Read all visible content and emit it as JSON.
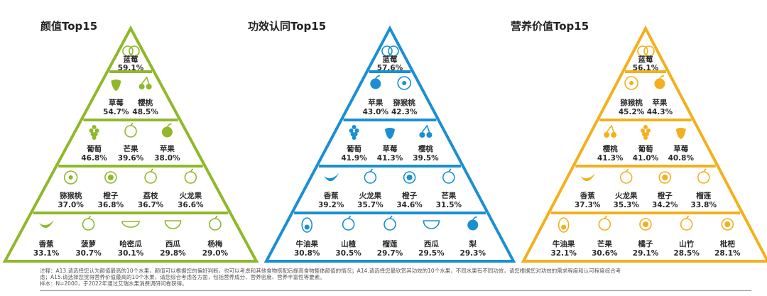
{
  "chart_data": [
    {
      "type": "pyramid",
      "title": "颜值Top15",
      "color": "#8fb82a",
      "rows": [
        [
          {
            "name": "蓝莓",
            "value": "59.1%",
            "icon": "blueberry-icon"
          }
        ],
        [
          {
            "name": "草莓",
            "value": "54.7%",
            "icon": "strawberry-icon"
          },
          {
            "name": "樱桃",
            "value": "48.5%",
            "icon": "cherry-icon"
          }
        ],
        [
          {
            "name": "葡萄",
            "value": "46.8%",
            "icon": "grape-icon"
          },
          {
            "name": "芒果",
            "value": "39.6%",
            "icon": "mango-icon"
          },
          {
            "name": "苹果",
            "value": "38.0%",
            "icon": "apple-icon"
          }
        ],
        [
          {
            "name": "猕猴桃",
            "value": "37.0%",
            "icon": "kiwi-icon"
          },
          {
            "name": "橙子",
            "value": "36.8%",
            "icon": "orange-icon"
          },
          {
            "name": "荔枝",
            "value": "36.7%",
            "icon": "lychee-icon"
          },
          {
            "name": "火龙果",
            "value": "36.6%",
            "icon": "dragonfruit-icon"
          }
        ],
        [
          {
            "name": "香蕉",
            "value": "33.1%",
            "icon": "banana-icon"
          },
          {
            "name": "菠萝",
            "value": "30.7%",
            "icon": "pineapple-icon"
          },
          {
            "name": "哈密瓜",
            "value": "30.1%",
            "icon": "cantaloupe-icon"
          },
          {
            "name": "西瓜",
            "value": "29.8%",
            "icon": "watermelon-icon"
          },
          {
            "name": "杨梅",
            "value": "29.0%",
            "icon": "bayberry-icon"
          }
        ]
      ]
    },
    {
      "type": "pyramid",
      "title": "功效认同Top15",
      "color": "#1a8fd1",
      "rows": [
        [
          {
            "name": "蓝莓",
            "value": "57.6%",
            "icon": "blueberry-icon"
          }
        ],
        [
          {
            "name": "苹果",
            "value": "43.0%",
            "icon": "apple-icon"
          },
          {
            "name": "猕猴桃",
            "value": "42.3%",
            "icon": "kiwi-icon"
          }
        ],
        [
          {
            "name": "葡萄",
            "value": "41.9%",
            "icon": "grape-icon"
          },
          {
            "name": "草莓",
            "value": "41.3%",
            "icon": "strawberry-icon"
          },
          {
            "name": "樱桃",
            "value": "39.5%",
            "icon": "cherry-icon"
          }
        ],
        [
          {
            "name": "香蕉",
            "value": "39.2%",
            "icon": "banana-icon"
          },
          {
            "name": "火龙果",
            "value": "35.7%",
            "icon": "dragonfruit-icon"
          },
          {
            "name": "橙子",
            "value": "34.6%",
            "icon": "orange-icon"
          },
          {
            "name": "芒果",
            "value": "31.5%",
            "icon": "mango-icon"
          }
        ],
        [
          {
            "name": "牛油果",
            "value": "30.8%",
            "icon": "avocado-icon"
          },
          {
            "name": "山楂",
            "value": "30.5%",
            "icon": "hawthorn-icon"
          },
          {
            "name": "榴莲",
            "value": "29.7%",
            "icon": "durian-icon"
          },
          {
            "name": "西瓜",
            "value": "29.5%",
            "icon": "watermelon-icon"
          },
          {
            "name": "梨",
            "value": "29.3%",
            "icon": "pear-icon"
          }
        ]
      ]
    },
    {
      "type": "pyramid",
      "title": "营养价值Top15",
      "color": "#f2b01e",
      "rows": [
        [
          {
            "name": "蓝莓",
            "value": "56.1%",
            "icon": "blueberry-icon"
          }
        ],
        [
          {
            "name": "猕猴桃",
            "value": "45.2%",
            "icon": "kiwi-icon"
          },
          {
            "name": "苹果",
            "value": "44.3%",
            "icon": "apple-icon"
          }
        ],
        [
          {
            "name": "樱桃",
            "value": "41.3%",
            "icon": "cherry-icon"
          },
          {
            "name": "葡萄",
            "value": "41.0%",
            "icon": "grape-icon"
          },
          {
            "name": "草莓",
            "value": "40.8%",
            "icon": "strawberry-icon"
          }
        ],
        [
          {
            "name": "香蕉",
            "value": "37.3%",
            "icon": "banana-icon"
          },
          {
            "name": "火龙果",
            "value": "35.3%",
            "icon": "dragonfruit-icon"
          },
          {
            "name": "橙子",
            "value": "34.2%",
            "icon": "orange-icon"
          },
          {
            "name": "榴莲",
            "value": "33.8%",
            "icon": "durian-icon"
          }
        ],
        [
          {
            "name": "牛油果",
            "value": "32.1%",
            "icon": "avocado-icon"
          },
          {
            "name": "芒果",
            "value": "30.6%",
            "icon": "mango-icon"
          },
          {
            "name": "橘子",
            "value": "29.1%",
            "icon": "tangerine-icon"
          },
          {
            "name": "山竹",
            "value": "28.5%",
            "icon": "mangosteen-icon"
          },
          {
            "name": "枇杷",
            "value": "28.1%",
            "icon": "loquat-icon"
          }
        ]
      ]
    }
  ],
  "notes": {
    "line1": "注释：A13.请选择您认为颜值最高的10个水果，颜值可以根据您的偏好判断，也可以考虑和其他食物搭配后提高食物整体颜值的情况；A14.请选择您最欣赏其功效的10个水果，不同水果有不同功效，请您根据您对功效的需求程度和认可程度综合考",
    "line2": "虑；A15.请选择您觉得营养价值最高的10个水果，请您综合考虑各方面，包括营养成分、营养密度、营养丰富性等要素。",
    "line3": "样本：N=2000，于2022年通过艾瑞水果消费调研问卷获得。"
  }
}
